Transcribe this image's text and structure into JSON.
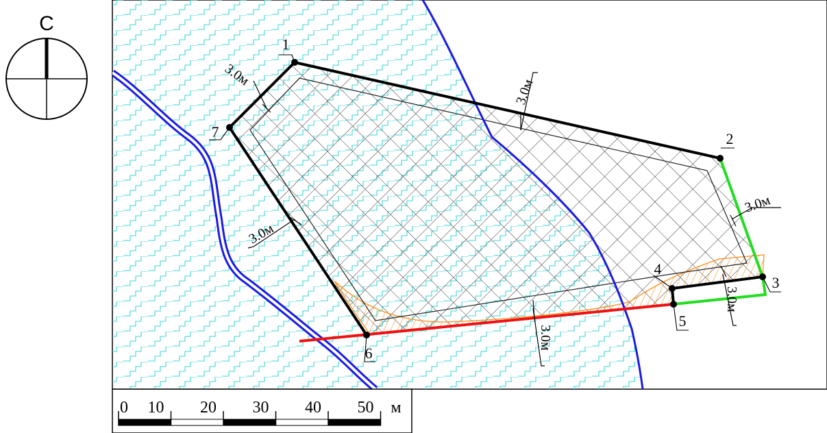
{
  "compass": {
    "north_letter": "С",
    "icon": "north-arrow-icon"
  },
  "parcel": {
    "points": [
      {
        "id": "1",
        "label": "1"
      },
      {
        "id": "2",
        "label": "2"
      },
      {
        "id": "3",
        "label": "3"
      },
      {
        "id": "4",
        "label": "4"
      },
      {
        "id": "5",
        "label": "5"
      },
      {
        "id": "6",
        "label": "6"
      },
      {
        "id": "7",
        "label": "7"
      }
    ]
  },
  "setback_labels": {
    "northwest": "3.0м",
    "north": "3.0м",
    "east": "3.0м",
    "southwest": "3.0м",
    "south": "3.0м",
    "southeast": "3.0м"
  },
  "scale_bar": {
    "ticks": [
      "0",
      "10",
      "20",
      "30",
      "40",
      "50"
    ],
    "unit": "м"
  },
  "colors": {
    "boundary": "#000000",
    "boundary_green": "#22dd22",
    "boundary_red": "#ee1111",
    "river": "#1a1ae6",
    "water_pattern": "#3fd6d6",
    "hatch_orange": "#ff8c1a",
    "grid_hatch": "#333333"
  }
}
